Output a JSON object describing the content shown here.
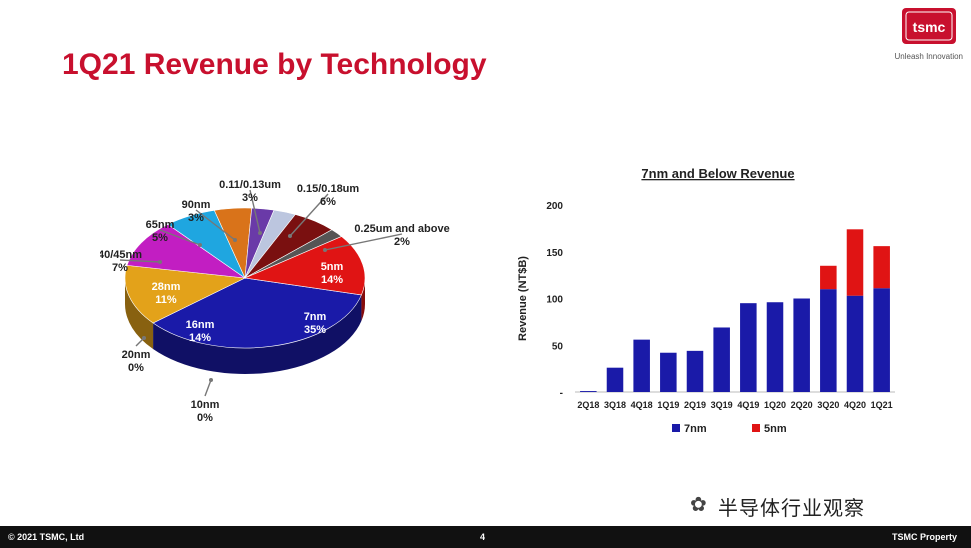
{
  "header": {
    "title": "1Q21 Revenue by Technology",
    "logo_text": "tsmc",
    "tagline": "Unleash Innovation"
  },
  "footer": {
    "copyright": "© 2021 TSMC, Ltd",
    "page_number": "4",
    "property": "TSMC Property"
  },
  "watermark": {
    "text": "半导体行业观察"
  },
  "chart_data": [
    {
      "type": "pie",
      "title": "",
      "slices": [
        {
          "label": "7nm",
          "value": 35,
          "display": "35%",
          "color": "#1a1aa8"
        },
        {
          "label": "16nm",
          "value": 14,
          "display": "14%",
          "color": "#e3a21a"
        },
        {
          "label": "20nm",
          "value": 0,
          "display": "0%",
          "color": "#999999"
        },
        {
          "label": "10nm",
          "value": 0,
          "display": "0%",
          "color": "#777777"
        },
        {
          "label": "28nm",
          "value": 11,
          "display": "11%",
          "color": "#c21ec2"
        },
        {
          "label": "40/45nm",
          "value": 7,
          "display": "7%",
          "color": "#1fa6e0"
        },
        {
          "label": "65nm",
          "value": 5,
          "display": "5%",
          "color": "#d9731a"
        },
        {
          "label": "90nm",
          "value": 3,
          "display": "3%",
          "color": "#6a3aa8"
        },
        {
          "label": "0.11/0.13um",
          "value": 3,
          "display": "3%",
          "color": "#bcc6df"
        },
        {
          "label": "0.15/0.18um",
          "value": 6,
          "display": "6%",
          "color": "#7a1010"
        },
        {
          "label": "0.25um and above",
          "value": 2,
          "display": "2%",
          "color": "#555555"
        },
        {
          "label": "5nm",
          "value": 14,
          "display": "14%",
          "color": "#e01414"
        }
      ]
    },
    {
      "type": "bar",
      "title": "7nm and Below Revenue",
      "ylabel": "Revenue (NT$B)",
      "xlabel": "",
      "ylim": [
        0,
        200
      ],
      "yticks": [
        "-",
        "50",
        "100",
        "150",
        "200"
      ],
      "categories": [
        "2Q18",
        "3Q18",
        "4Q18",
        "1Q19",
        "2Q19",
        "3Q19",
        "4Q19",
        "1Q20",
        "2Q20",
        "3Q20",
        "4Q20",
        "1Q21"
      ],
      "series": [
        {
          "name": "7nm",
          "color": "#1a1aa8",
          "values": [
            1,
            26,
            56,
            42,
            44,
            69,
            95,
            96,
            100,
            110,
            103,
            111
          ]
        },
        {
          "name": "5nm",
          "color": "#e01414",
          "values": [
            0,
            0,
            0,
            0,
            0,
            0,
            0,
            0,
            0,
            25,
            71,
            45
          ]
        }
      ],
      "legend": "bottom"
    }
  ]
}
